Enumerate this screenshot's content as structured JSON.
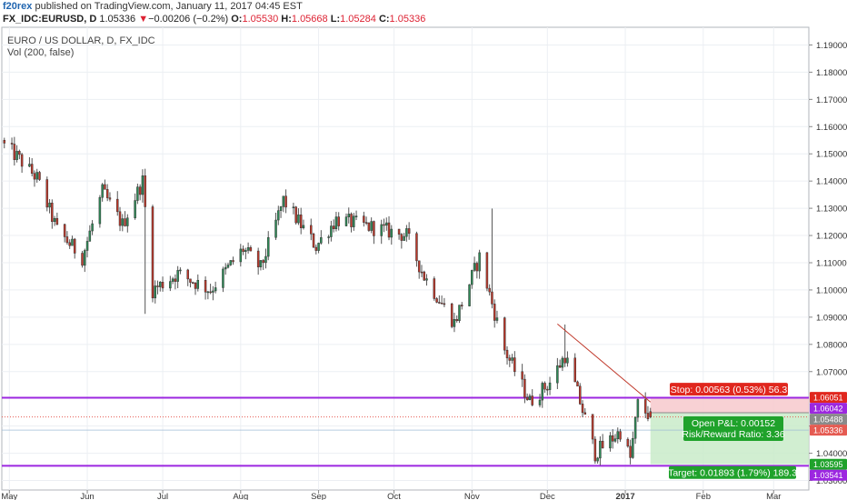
{
  "publish_bar": {
    "author": "f20rex",
    "text": "published on TradingView.com, January 11, 2017 04:45 EST"
  },
  "ohlc_bar": {
    "symbol": "FX_IDC:EURUSD, D",
    "last": "1.05336",
    "change_arrow": "▼",
    "change": "−0.00206 (−0.2%)",
    "o_label": "O:",
    "o": "1.05530",
    "h_label": "H:",
    "h": "1.05668",
    "l_label": "L:",
    "l": "1.05284",
    "c_label": "C:",
    "c": "1.05336"
  },
  "legend": {
    "series": "EURO / US DOLLAR, D, FX_IDC",
    "indicator": "Vol (200, false)"
  },
  "price_axis_labels": [
    "1.19000",
    "1.18000",
    "1.17000",
    "1.16000",
    "1.15000",
    "1.14000",
    "1.13000",
    "1.12000",
    "1.11000",
    "1.10000",
    "1.09000",
    "1.08000",
    "1.07000",
    "1.05000",
    "1.04000",
    "1.03000"
  ],
  "time_axis_labels": [
    {
      "label": "May",
      "date": "2016-05-01"
    },
    {
      "label": "Jun",
      "date": "2016-06-01"
    },
    {
      "label": "Jul",
      "date": "2016-07-01"
    },
    {
      "label": "Aug",
      "date": "2016-08-01"
    },
    {
      "label": "Sep",
      "date": "2016-09-01"
    },
    {
      "label": "Oct",
      "date": "2016-10-01"
    },
    {
      "label": "Nov",
      "date": "2016-11-01"
    },
    {
      "label": "Dec",
      "date": "2016-12-01"
    },
    {
      "label": "2017",
      "date": "2017-01-01"
    },
    {
      "label": "Feb",
      "date": "2017-02-01"
    },
    {
      "label": "Mar",
      "date": "2017-03-01"
    }
  ],
  "price_tags": [
    {
      "id": "stop-level",
      "price": 1.06051,
      "text": "1.06051",
      "bg": "#e0271e",
      "fg": "#ffffff"
    },
    {
      "id": "upper-line",
      "price": 1.06042,
      "text": "1.06042",
      "bg": "#9c27e0",
      "fg": "#ffffff"
    },
    {
      "id": "entry-level",
      "price": 1.05488,
      "text": "1.05488",
      "bg": "#8a8a8a",
      "fg": "#ffffff"
    },
    {
      "id": "last-price",
      "price": 1.05336,
      "text": "1.05336",
      "bg": "#e55b52",
      "fg": "#ffffff"
    },
    {
      "id": "target-level",
      "price": 1.03595,
      "text": "1.03595",
      "bg": "#1fa22b",
      "fg": "#ffffff"
    },
    {
      "id": "lower-line",
      "price": 1.03541,
      "text": "1.03541",
      "bg": "#9c27e0",
      "fg": "#ffffff"
    }
  ],
  "position_tool": {
    "stop_text": "Stop: 0.00563 (0.53%) 56.3",
    "pnl_text": "Open P&L: 0.00152",
    "rr_text": "Risk/Reward Ratio: 3.36",
    "target_text": "Target: 0.01893 (1.79%) 189.3",
    "entry": 1.05488,
    "stop": 1.06051,
    "target": 1.03595
  },
  "horizontal_lines": [
    {
      "price": 1.06042,
      "color": "#9c27e0"
    },
    {
      "price": 1.03541,
      "color": "#9c27e0"
    }
  ],
  "trend_line": {
    "start": {
      "date": "2016-12-05",
      "price": 1.0875
    },
    "end": {
      "date": "2017-01-11",
      "price": 1.0588
    },
    "color": "#c0392b"
  },
  "colors": {
    "up": "#2e8b57",
    "down": "#c0392b",
    "grid": "#eceff3",
    "axis_text": "#333333"
  },
  "chart_data": {
    "type": "candlestick",
    "title": "EURO / US DOLLAR, D, FX_IDC",
    "x_range": [
      "2016-04-28",
      "2017-03-15"
    ],
    "y_range": [
      1.0265,
      1.1965
    ],
    "grid": true,
    "series": [
      {
        "name": "EURUSD",
        "anchors": [
          {
            "date": "2016-04-29",
            "close": 1.153
          },
          {
            "date": "2016-05-04",
            "close": 1.149
          },
          {
            "date": "2016-05-12",
            "close": 1.141
          },
          {
            "date": "2016-05-20",
            "close": 1.122
          },
          {
            "date": "2016-05-30",
            "close": 1.112
          },
          {
            "date": "2016-06-07",
            "close": 1.136
          },
          {
            "date": "2016-06-15",
            "close": 1.124
          },
          {
            "date": "2016-06-23",
            "close": 1.14
          },
          {
            "date": "2016-06-27",
            "close": 1.1
          },
          {
            "date": "2016-07-07",
            "close": 1.106
          },
          {
            "date": "2016-07-20",
            "close": 1.1
          },
          {
            "date": "2016-08-02",
            "close": 1.115
          },
          {
            "date": "2016-08-09",
            "close": 1.108
          },
          {
            "date": "2016-08-18",
            "close": 1.133
          },
          {
            "date": "2016-08-31",
            "close": 1.116
          },
          {
            "date": "2016-09-08",
            "close": 1.126
          },
          {
            "date": "2016-09-27",
            "close": 1.122
          },
          {
            "date": "2016-10-06",
            "close": 1.12
          },
          {
            "date": "2016-10-13",
            "close": 1.105
          },
          {
            "date": "2016-10-25",
            "close": 1.088
          },
          {
            "date": "2016-11-04",
            "close": 1.112
          },
          {
            "date": "2016-11-14",
            "close": 1.078
          },
          {
            "date": "2016-11-24",
            "close": 1.059
          },
          {
            "date": "2016-12-02",
            "close": 1.066
          },
          {
            "date": "2016-12-08",
            "close": 1.076
          },
          {
            "date": "2016-12-13",
            "close": 1.062
          },
          {
            "date": "2016-12-20",
            "close": 1.04
          },
          {
            "date": "2016-12-30",
            "close": 1.048
          },
          {
            "date": "2017-01-03",
            "close": 1.038
          },
          {
            "date": "2017-01-06",
            "close": 1.058
          },
          {
            "date": "2017-01-11",
            "close": 1.0534
          }
        ]
      }
    ]
  }
}
